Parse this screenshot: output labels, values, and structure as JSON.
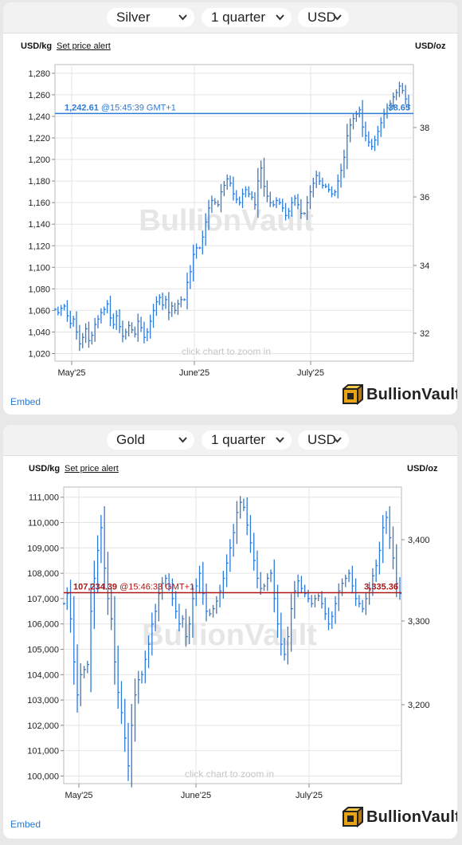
{
  "silver": {
    "metal": "Silver",
    "period": "1 quarter",
    "currency": "USD",
    "unit_left": "USD/kg",
    "alert_link": "Set price alert",
    "unit_right": "USD/oz",
    "current_left": "1,242.61",
    "current_time": "@15:45:39 GMT+1",
    "current_right": "38.65",
    "watermark": "BullionVault",
    "zoom_hint": "click chart to zoom in",
    "embed": "Embed",
    "logo": "BullionVault",
    "line_color": "#2e7bd6",
    "price_line_color": "#2e7bd6",
    "chart_data": {
      "type": "line",
      "y_ticks_left": [
        "1,020",
        "1,040",
        "1,060",
        "1,080",
        "1,100",
        "1,120",
        "1,140",
        "1,160",
        "1,180",
        "1,200",
        "1,220",
        "1,240",
        "1,260",
        "1,280"
      ],
      "y_ticks_right": [
        "32",
        "34",
        "36",
        "38"
      ],
      "x_ticks": [
        "May'25",
        "June'25",
        "July'25"
      ],
      "ylim_left": [
        1013,
        1288
      ],
      "current_price": 1242.61,
      "series": [
        {
          "values": [
            1061,
            1058,
            1062,
            1064,
            1055,
            1048,
            1052,
            1040,
            1029,
            1035,
            1043,
            1032,
            1037,
            1047,
            1052,
            1058,
            1061,
            1066,
            1053,
            1047,
            1055,
            1045,
            1036,
            1040,
            1046,
            1042,
            1038,
            1050,
            1044,
            1035,
            1040,
            1050,
            1060,
            1068,
            1072,
            1065,
            1070,
            1058,
            1064,
            1060,
            1066,
            1070,
            1070,
            1086,
            1096,
            1112,
            1118,
            1118,
            1128,
            1142,
            1155,
            1162,
            1160,
            1158,
            1170,
            1176,
            1182,
            1178,
            1168,
            1163,
            1160,
            1168,
            1172,
            1168,
            1165,
            1158,
            1180,
            1192,
            1175,
            1166,
            1160,
            1158,
            1162,
            1160,
            1155,
            1148,
            1152,
            1160,
            1164,
            1158,
            1150,
            1150,
            1160,
            1170,
            1178,
            1185,
            1180,
            1176,
            1175,
            1172,
            1168,
            1170,
            1180,
            1190,
            1202,
            1222,
            1232,
            1238,
            1242,
            1246,
            1230,
            1222,
            1216,
            1212,
            1218,
            1226,
            1234,
            1242,
            1248,
            1252,
            1258,
            1262,
            1268,
            1264,
            1256,
            1250
          ]
        }
      ]
    }
  },
  "gold": {
    "metal": "Gold",
    "period": "1 quarter",
    "currency": "USD",
    "unit_left": "USD/kg",
    "alert_link": "Set price alert",
    "unit_right": "USD/oz",
    "current_left": "107,234.39",
    "current_time": "@15:46:33 GMT+1",
    "current_right": "3,335.36",
    "watermark": "BullionVault",
    "zoom_hint": "click chart to zoom in",
    "embed": "Embed",
    "logo": "BullionVault",
    "line_color": "#2e7bd6",
    "price_line_color": "#b01515",
    "chart_data": {
      "type": "line",
      "y_ticks_left": [
        "100,000",
        "101,000",
        "102,000",
        "103,000",
        "104,000",
        "105,000",
        "106,000",
        "107,000",
        "108,000",
        "109,000",
        "110,000",
        "111,000"
      ],
      "y_ticks_right": [
        "3,200",
        "3,300",
        "3,400"
      ],
      "x_ticks": [
        "May'25",
        "June'25",
        "July'25"
      ],
      "ylim_left": [
        99700,
        111400
      ],
      "current_price": 107234.39,
      "series": [
        {
          "values": [
            106800,
            107200,
            106200,
            104500,
            103200,
            104000,
            104200,
            104400,
            106500,
            107800,
            108900,
            109800,
            108200,
            107000,
            106200,
            104500,
            103300,
            102500,
            101500,
            100400,
            102000,
            103200,
            103800,
            104000,
            104600,
            105200,
            106000,
            106500,
            107200,
            107600,
            107800,
            107500,
            107000,
            106500,
            106000,
            106200,
            105500,
            106000,
            107000,
            107500,
            108000,
            107200,
            106500,
            106400,
            106600,
            106900,
            107300,
            107800,
            108400,
            109000,
            109600,
            110400,
            110800,
            110600,
            109900,
            109200,
            108500,
            107800,
            107400,
            107500,
            107800,
            108000,
            107000,
            106000,
            105200,
            104800,
            105500,
            106600,
            107300,
            107700,
            107400,
            107200,
            107000,
            106800,
            107000,
            107100,
            106800,
            106400,
            106000,
            106300,
            106800,
            107300,
            107600,
            107800,
            108000,
            107500,
            107000,
            106800,
            106600,
            107000,
            107400,
            107900,
            108300,
            108900,
            109800,
            110200,
            109400,
            108600,
            107600,
            107200
          ]
        }
      ]
    }
  }
}
